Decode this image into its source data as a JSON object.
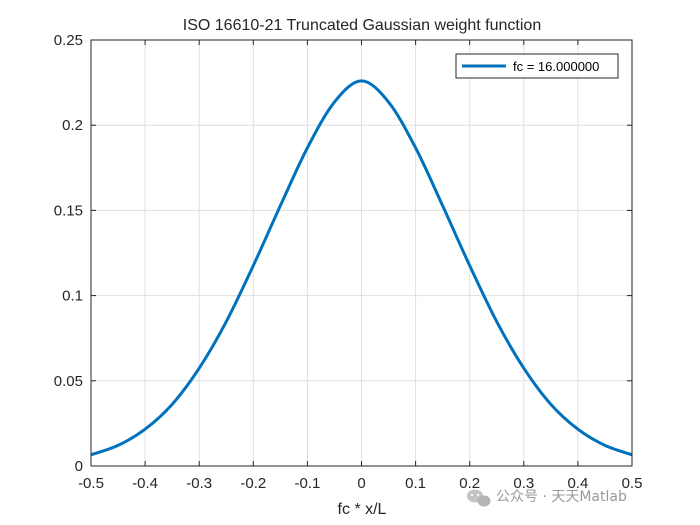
{
  "chart_data": {
    "type": "line",
    "title": "ISO 16610-21 Truncated Gaussian weight function",
    "xlabel": "fc * x/L",
    "ylabel": "",
    "xlim": [
      -0.5,
      0.5
    ],
    "ylim": [
      0,
      0.25
    ],
    "xticks": [
      -0.5,
      -0.4,
      -0.3,
      -0.2,
      -0.1,
      0,
      0.1,
      0.2,
      0.3,
      0.4,
      0.5
    ],
    "xtick_labels": [
      "-0.5",
      "-0.4",
      "-0.3",
      "-0.2",
      "-0.1",
      "0",
      "0.1",
      "0.2",
      "0.3",
      "0.4",
      "0.5"
    ],
    "yticks": [
      0,
      0.05,
      0.1,
      0.15,
      0.2,
      0.25
    ],
    "ytick_labels": [
      "0",
      "0.05",
      "0.1",
      "0.15",
      "0.2",
      "0.25"
    ],
    "grid": true,
    "legend_position": "top-right",
    "series": [
      {
        "name": "fc = 16.000000",
        "color": "#0072BD",
        "x": [
          -0.5,
          -0.45,
          -0.4,
          -0.35,
          -0.3,
          -0.25,
          -0.2,
          -0.15,
          -0.1,
          -0.05,
          0,
          0.05,
          0.1,
          0.15,
          0.2,
          0.25,
          0.3,
          0.35,
          0.4,
          0.45,
          0.5
        ],
        "y": [
          0.0066,
          0.0121,
          0.0216,
          0.0362,
          0.0574,
          0.0847,
          0.1176,
          0.1527,
          0.1867,
          0.2136,
          0.226,
          0.2136,
          0.1867,
          0.1527,
          0.1176,
          0.0847,
          0.0574,
          0.0362,
          0.0216,
          0.0121,
          0.0066
        ]
      }
    ]
  },
  "watermark": {
    "text": "公众号 · 天天Matlab",
    "icon": "wechat-icon"
  }
}
